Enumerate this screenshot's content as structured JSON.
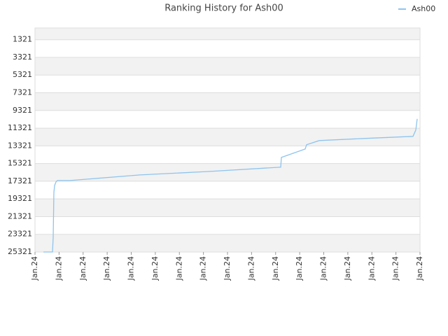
{
  "chart_data": {
    "type": "line",
    "title": "Ranking History for Ash00",
    "x": [
      0.349,
      0.727,
      0.756,
      0.785,
      0.815,
      0.873,
      0.931,
      1.455,
      4.364,
      7.273,
      10.182,
      10.211,
      10.24,
      11.229,
      11.287,
      11.811,
      13.673,
      15.709,
      15.825,
      15.884
    ],
    "series": [
      {
        "name": "Ash00",
        "color": "#8ec4ee",
        "values": [
          25321,
          25321,
          23700,
          18600,
          17800,
          17400,
          17240,
          17240,
          16607,
          16210,
          15735,
          15735,
          14626,
          13676,
          13200,
          12726,
          12488,
          12250,
          11538,
          10270
        ]
      }
    ],
    "xlim": [
      0,
      16
    ],
    "xticks": [
      {
        "value": 0,
        "label": "Jan.24"
      },
      {
        "value": 1,
        "label": "Jan.24"
      },
      {
        "value": 2,
        "label": "Jan.24"
      },
      {
        "value": 3,
        "label": "Jan.24"
      },
      {
        "value": 4,
        "label": "Jan.24"
      },
      {
        "value": 5,
        "label": "Jan.24"
      },
      {
        "value": 6,
        "label": "Jan.24"
      },
      {
        "value": 7,
        "label": "Jan.24"
      },
      {
        "value": 8,
        "label": "Jan.24"
      },
      {
        "value": 9,
        "label": "Jan.24"
      },
      {
        "value": 10,
        "label": "Jan.24"
      },
      {
        "value": 11,
        "label": "Jan.24"
      },
      {
        "value": 12,
        "label": "Jan.24"
      },
      {
        "value": 13,
        "label": "Jan.24"
      },
      {
        "value": 14,
        "label": "Jan.24"
      },
      {
        "value": 15,
        "label": "Jan.24"
      },
      {
        "value": 16,
        "label": "Jan.24"
      }
    ],
    "ylim": [
      25321,
      0
    ],
    "yticks": [
      1321,
      3321,
      5321,
      7321,
      9321,
      11321,
      13321,
      15321,
      17321,
      19321,
      21321,
      23321,
      25321
    ],
    "grid": true,
    "legend": "top-right"
  }
}
